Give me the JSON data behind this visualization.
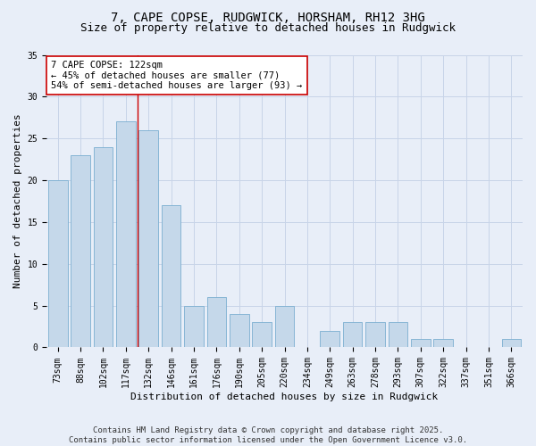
{
  "title_line1": "7, CAPE COPSE, RUDGWICK, HORSHAM, RH12 3HG",
  "title_line2": "Size of property relative to detached houses in Rudgwick",
  "xlabel": "Distribution of detached houses by size in Rudgwick",
  "ylabel": "Number of detached properties",
  "categories": [
    "73sqm",
    "88sqm",
    "102sqm",
    "117sqm",
    "132sqm",
    "146sqm",
    "161sqm",
    "176sqm",
    "190sqm",
    "205sqm",
    "220sqm",
    "234sqm",
    "249sqm",
    "263sqm",
    "278sqm",
    "293sqm",
    "307sqm",
    "322sqm",
    "337sqm",
    "351sqm",
    "366sqm"
  ],
  "values": [
    20,
    23,
    24,
    27,
    26,
    17,
    5,
    6,
    4,
    3,
    5,
    0,
    2,
    3,
    3,
    3,
    1,
    1,
    0,
    0,
    1
  ],
  "bar_color": "#c5d8ea",
  "bar_edge_color": "#7aaed0",
  "grid_color": "#c8d4e8",
  "background_color": "#e8eef8",
  "vline_x_index": 3.5,
  "vline_color": "#cc0000",
  "annotation_text": "7 CAPE COPSE: 122sqm\n← 45% of detached houses are smaller (77)\n54% of semi-detached houses are larger (93) →",
  "annotation_box_color": "#ffffff",
  "annotation_box_edge_color": "#cc0000",
  "ylim": [
    0,
    35
  ],
  "yticks": [
    0,
    5,
    10,
    15,
    20,
    25,
    30,
    35
  ],
  "footer_text": "Contains HM Land Registry data © Crown copyright and database right 2025.\nContains public sector information licensed under the Open Government Licence v3.0.",
  "title_fontsize": 10,
  "subtitle_fontsize": 9,
  "axis_label_fontsize": 8,
  "tick_fontsize": 7,
  "annotation_fontsize": 7.5,
  "footer_fontsize": 6.5
}
